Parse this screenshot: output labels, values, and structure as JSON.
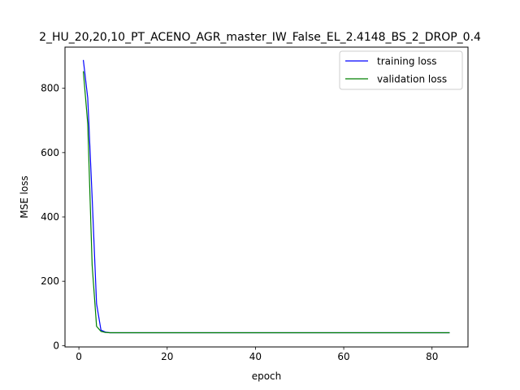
{
  "chart_data": {
    "type": "line",
    "title": "2_HU_20,20,10_PT_ACENO_AGR_master_IW_False_EL_2.4148_BS_2_DROP_0.4",
    "xlabel": "epoch",
    "ylabel": "MSE loss",
    "xlim": [
      -3.15,
      88.15
    ],
    "ylim": [
      -4.2,
      928
    ],
    "xticks": [
      0,
      20,
      40,
      60,
      80
    ],
    "yticks": [
      0,
      200,
      400,
      600,
      800
    ],
    "grid": false,
    "legend_position": "upper right",
    "series": [
      {
        "name": "training loss",
        "color": "#0000ff",
        "points": [
          [
            1,
            888
          ],
          [
            2,
            770
          ],
          [
            3,
            460
          ],
          [
            4,
            130
          ],
          [
            5,
            48
          ],
          [
            6,
            42
          ],
          [
            7,
            40
          ],
          [
            8,
            40
          ],
          [
            10,
            40
          ],
          [
            20,
            40
          ],
          [
            30,
            40
          ],
          [
            40,
            40
          ],
          [
            50,
            40
          ],
          [
            60,
            40
          ],
          [
            70,
            40
          ],
          [
            80,
            40
          ],
          [
            84,
            40
          ]
        ]
      },
      {
        "name": "validation loss",
        "color": "#008000",
        "points": [
          [
            1,
            853
          ],
          [
            2,
            690
          ],
          [
            3,
            250
          ],
          [
            4,
            60
          ],
          [
            5,
            44
          ],
          [
            6,
            41
          ],
          [
            7,
            40
          ],
          [
            8,
            40
          ],
          [
            10,
            40
          ],
          [
            20,
            40
          ],
          [
            30,
            40
          ],
          [
            40,
            40
          ],
          [
            50,
            40
          ],
          [
            60,
            40
          ],
          [
            70,
            40
          ],
          [
            80,
            40
          ],
          [
            84,
            40
          ]
        ]
      }
    ]
  }
}
